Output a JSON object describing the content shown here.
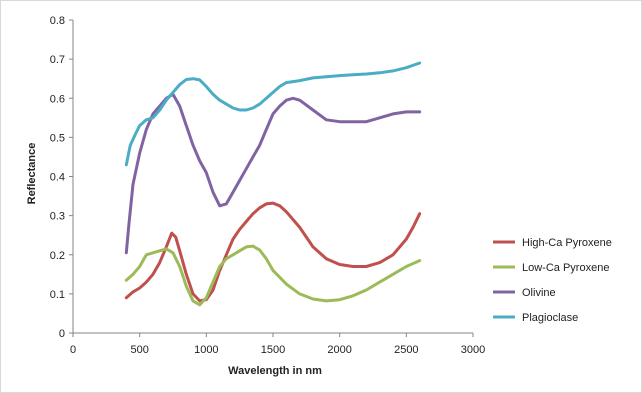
{
  "chart_data": {
    "type": "line",
    "title": "",
    "xlabel": "Wavelength in nm",
    "ylabel": "Reflectance",
    "xlim": [
      0,
      3000
    ],
    "ylim": [
      0,
      0.8
    ],
    "xticks": [
      0,
      500,
      1000,
      1500,
      2000,
      2500,
      3000
    ],
    "yticks": [
      0,
      0.1,
      0.2,
      0.3,
      0.4,
      0.5,
      0.6,
      0.7,
      0.8
    ],
    "xtick_labels": [
      "0",
      "500",
      "1000",
      "1500",
      "2000",
      "2500",
      "3000"
    ],
    "ytick_labels": [
      "0",
      "0.1",
      "0.2",
      "0.3",
      "0.4",
      "0.5",
      "0.6",
      "0.7",
      "0.8"
    ],
    "grid": false,
    "legend_position": "right",
    "series": [
      {
        "name": "High-Ca Pyroxene",
        "color": "#c0504d",
        "points": [
          [
            400,
            0.09
          ],
          [
            450,
            0.105
          ],
          [
            500,
            0.115
          ],
          [
            550,
            0.13
          ],
          [
            600,
            0.15
          ],
          [
            650,
            0.18
          ],
          [
            700,
            0.22
          ],
          [
            740,
            0.255
          ],
          [
            770,
            0.245
          ],
          [
            800,
            0.21
          ],
          [
            850,
            0.15
          ],
          [
            900,
            0.1
          ],
          [
            950,
            0.082
          ],
          [
            1000,
            0.085
          ],
          [
            1050,
            0.11
          ],
          [
            1100,
            0.16
          ],
          [
            1150,
            0.2
          ],
          [
            1200,
            0.24
          ],
          [
            1250,
            0.265
          ],
          [
            1300,
            0.285
          ],
          [
            1350,
            0.305
          ],
          [
            1400,
            0.32
          ],
          [
            1450,
            0.33
          ],
          [
            1500,
            0.332
          ],
          [
            1550,
            0.325
          ],
          [
            1600,
            0.31
          ],
          [
            1700,
            0.27
          ],
          [
            1800,
            0.22
          ],
          [
            1900,
            0.19
          ],
          [
            2000,
            0.175
          ],
          [
            2100,
            0.17
          ],
          [
            2200,
            0.17
          ],
          [
            2300,
            0.18
          ],
          [
            2400,
            0.2
          ],
          [
            2500,
            0.24
          ],
          [
            2550,
            0.27
          ],
          [
            2600,
            0.305
          ]
        ]
      },
      {
        "name": "Low-Ca Pyroxene",
        "color": "#9bbb59",
        "points": [
          [
            400,
            0.135
          ],
          [
            450,
            0.15
          ],
          [
            500,
            0.17
          ],
          [
            550,
            0.2
          ],
          [
            600,
            0.205
          ],
          [
            650,
            0.21
          ],
          [
            700,
            0.215
          ],
          [
            750,
            0.205
          ],
          [
            800,
            0.17
          ],
          [
            850,
            0.12
          ],
          [
            900,
            0.082
          ],
          [
            950,
            0.072
          ],
          [
            1000,
            0.09
          ],
          [
            1050,
            0.13
          ],
          [
            1100,
            0.17
          ],
          [
            1150,
            0.19
          ],
          [
            1200,
            0.2
          ],
          [
            1250,
            0.21
          ],
          [
            1300,
            0.22
          ],
          [
            1350,
            0.222
          ],
          [
            1400,
            0.212
          ],
          [
            1450,
            0.19
          ],
          [
            1500,
            0.16
          ],
          [
            1600,
            0.125
          ],
          [
            1700,
            0.1
          ],
          [
            1800,
            0.087
          ],
          [
            1900,
            0.082
          ],
          [
            2000,
            0.085
          ],
          [
            2100,
            0.095
          ],
          [
            2200,
            0.11
          ],
          [
            2300,
            0.13
          ],
          [
            2400,
            0.15
          ],
          [
            2500,
            0.17
          ],
          [
            2600,
            0.185
          ]
        ]
      },
      {
        "name": "Olivine",
        "color": "#8064a2",
        "points": [
          [
            400,
            0.205
          ],
          [
            420,
            0.28
          ],
          [
            450,
            0.38
          ],
          [
            500,
            0.46
          ],
          [
            550,
            0.52
          ],
          [
            600,
            0.56
          ],
          [
            650,
            0.58
          ],
          [
            700,
            0.6
          ],
          [
            750,
            0.61
          ],
          [
            800,
            0.58
          ],
          [
            850,
            0.53
          ],
          [
            900,
            0.48
          ],
          [
            950,
            0.44
          ],
          [
            1000,
            0.41
          ],
          [
            1050,
            0.36
          ],
          [
            1100,
            0.325
          ],
          [
            1150,
            0.33
          ],
          [
            1200,
            0.36
          ],
          [
            1250,
            0.39
          ],
          [
            1300,
            0.42
          ],
          [
            1350,
            0.45
          ],
          [
            1400,
            0.48
          ],
          [
            1450,
            0.52
          ],
          [
            1500,
            0.56
          ],
          [
            1550,
            0.58
          ],
          [
            1600,
            0.595
          ],
          [
            1650,
            0.6
          ],
          [
            1700,
            0.595
          ],
          [
            1800,
            0.57
          ],
          [
            1900,
            0.545
          ],
          [
            2000,
            0.54
          ],
          [
            2100,
            0.54
          ],
          [
            2200,
            0.54
          ],
          [
            2300,
            0.55
          ],
          [
            2400,
            0.56
          ],
          [
            2500,
            0.565
          ],
          [
            2600,
            0.565
          ]
        ]
      },
      {
        "name": "Plagioclase",
        "color": "#4bacc6",
        "points": [
          [
            400,
            0.43
          ],
          [
            430,
            0.48
          ],
          [
            470,
            0.51
          ],
          [
            500,
            0.53
          ],
          [
            550,
            0.545
          ],
          [
            600,
            0.55
          ],
          [
            650,
            0.57
          ],
          [
            700,
            0.595
          ],
          [
            750,
            0.615
          ],
          [
            800,
            0.635
          ],
          [
            850,
            0.648
          ],
          [
            900,
            0.65
          ],
          [
            950,
            0.647
          ],
          [
            1000,
            0.63
          ],
          [
            1050,
            0.61
          ],
          [
            1100,
            0.595
          ],
          [
            1150,
            0.585
          ],
          [
            1200,
            0.575
          ],
          [
            1250,
            0.57
          ],
          [
            1300,
            0.57
          ],
          [
            1350,
            0.575
          ],
          [
            1400,
            0.585
          ],
          [
            1450,
            0.6
          ],
          [
            1500,
            0.615
          ],
          [
            1550,
            0.63
          ],
          [
            1600,
            0.64
          ],
          [
            1700,
            0.645
          ],
          [
            1800,
            0.652
          ],
          [
            1900,
            0.655
          ],
          [
            2000,
            0.658
          ],
          [
            2100,
            0.66
          ],
          [
            2200,
            0.662
          ],
          [
            2300,
            0.665
          ],
          [
            2400,
            0.67
          ],
          [
            2500,
            0.678
          ],
          [
            2600,
            0.69
          ]
        ]
      }
    ]
  }
}
